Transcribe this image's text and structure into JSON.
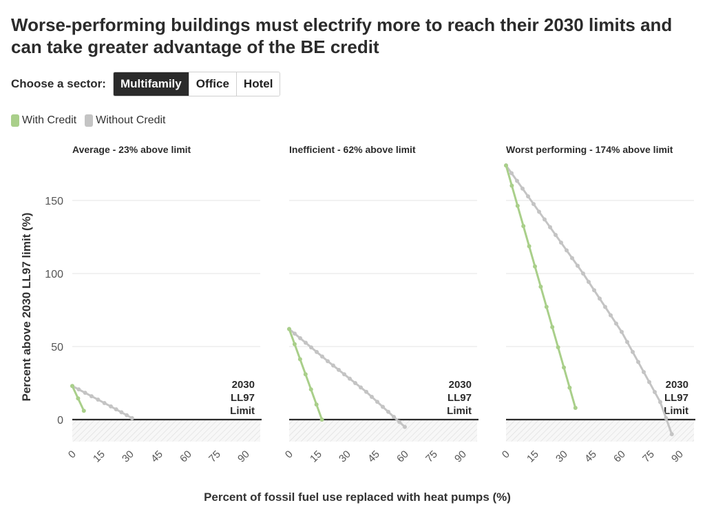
{
  "title": "Worse-performing buildings must electrify more to reach their 2030 limits and can take greater advantage of the BE credit",
  "sector_selector": {
    "label": "Choose a sector:",
    "options": [
      "Multifamily",
      "Office",
      "Hotel"
    ],
    "selected": "Multifamily"
  },
  "colors": {
    "with_credit": "#a9cf8a",
    "without_credit": "#c4c4c4",
    "limit_line": "#2b2b2b"
  },
  "chart_data": {
    "type": "line",
    "xlabel": "Percent of fossil fuel use replaced with heat pumps (%)",
    "ylabel": "Percent above 2030 LL97 limit (%)",
    "xlim": [
      0,
      100
    ],
    "ylim": [
      -15,
      175
    ],
    "xticks": [
      0,
      15,
      30,
      45,
      60,
      75,
      90
    ],
    "yticks": [
      0,
      50,
      100,
      150
    ],
    "grid": true,
    "legend_position": "top-left",
    "legend": [
      "With Credit",
      "Without Credit"
    ],
    "limit_label": [
      "2030",
      "LL97",
      "Limit"
    ],
    "panels": [
      {
        "title": "Average - 23% above limit",
        "series": [
          {
            "name": "With Credit",
            "x": [
              0,
              3,
              6
            ],
            "y": [
              23,
              14.5,
              6
            ]
          },
          {
            "name": "Without Credit",
            "x": [
              0,
              10,
              20,
              31
            ],
            "y": [
              23,
              16,
              9,
              1
            ]
          }
        ]
      },
      {
        "title": "Inefficient - 62% above limit",
        "series": [
          {
            "name": "With Credit",
            "x": [
              0,
              17
            ],
            "y": [
              62,
              0
            ]
          },
          {
            "name": "Without Credit",
            "x": [
              0,
              20,
              40,
              60
            ],
            "y": [
              62,
              40,
              19,
              -5
            ]
          }
        ]
      },
      {
        "title": "Worst performing - 174% above limit",
        "series": [
          {
            "name": "With Credit",
            "x": [
              0,
              36
            ],
            "y": [
              174,
              8
            ]
          },
          {
            "name": "Without Credit",
            "x": [
              0,
              20,
              40,
              60,
              80,
              86
            ],
            "y": [
              174,
              137,
              100,
              60,
              12,
              -10
            ]
          }
        ]
      }
    ]
  }
}
